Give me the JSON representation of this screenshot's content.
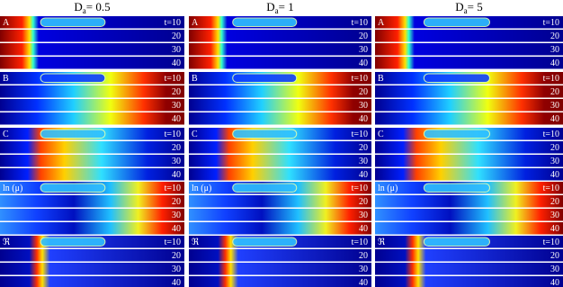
{
  "columns": [
    {
      "header": {
        "symbol": "D",
        "subscript": "a",
        "value": "= 0.5"
      }
    },
    {
      "header": {
        "symbol": "D",
        "subscript": "a",
        "value": "= 1"
      }
    },
    {
      "header": {
        "symbol": "D",
        "subscript": "a",
        "value": "= 5"
      }
    }
  ],
  "rows": [
    {
      "label": "A"
    },
    {
      "label": "B"
    },
    {
      "label": "C"
    },
    {
      "label": "ln (μ)"
    },
    {
      "label": "ℜ"
    }
  ],
  "times": [
    "t=10",
    "20",
    "30",
    "40"
  ]
}
